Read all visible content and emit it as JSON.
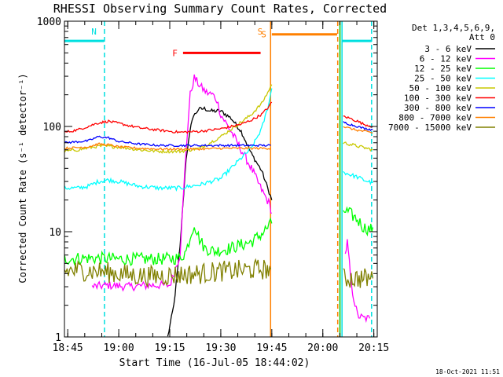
{
  "chart_data": {
    "type": "line",
    "title": "RHESSI Observing Summary Count Rates, Corrected",
    "xlabel": "Start Time (16-Jul-05 18:44:02)",
    "ylabel": "Corrected Count Rate (s⁻¹ detector⁻¹)",
    "y_scale": "log",
    "ylim": [
      1,
      1000
    ],
    "y_ticks": [
      {
        "value": 1,
        "label": "1"
      },
      {
        "value": 10,
        "label": "10"
      },
      {
        "value": 100,
        "label": "100"
      },
      {
        "value": 1000,
        "label": "1000"
      }
    ],
    "xlim": [
      18.7339,
      20.2667
    ],
    "x_ticks": [
      {
        "value": 18.75,
        "label": "18:45"
      },
      {
        "value": 19.0,
        "label": "19:00"
      },
      {
        "value": 19.25,
        "label": "19:15"
      },
      {
        "value": 19.5,
        "label": "19:30"
      },
      {
        "value": 19.75,
        "label": "19:45"
      },
      {
        "value": 20.0,
        "label": "20:00"
      },
      {
        "value": 20.25,
        "label": "20:15"
      }
    ],
    "legend_header": [
      "Det 1,3,4,5,6,9,",
      "Att 0"
    ],
    "legend_position": "right",
    "timestamp": "18-Oct-2021 11:51",
    "markers": [
      {
        "label": "N",
        "color": "#00e0e0",
        "style": "dashed",
        "x": 18.93
      },
      {
        "label": "S",
        "color": "#ff8000",
        "style": "solid",
        "x": 19.744
      },
      {
        "label": "",
        "color": "#ff8000",
        "style": "dashed",
        "x": 20.073
      },
      {
        "label": "",
        "color": "#00c000",
        "style": "solid",
        "x": 20.084
      },
      {
        "label": "",
        "color": "#00e0e0",
        "style": "solid",
        "x": 20.094
      },
      {
        "label": "",
        "color": "#00e0e0",
        "style": "dashed",
        "x": 20.239
      }
    ],
    "bars": [
      {
        "label": "",
        "color": "#00e0e0",
        "y": 650,
        "segments": [
          [
            18.735,
            18.928
          ],
          [
            20.095,
            20.239
          ]
        ]
      },
      {
        "label": "F",
        "color": "#ff0000",
        "y": 500,
        "segments": [
          [
            19.315,
            19.695
          ]
        ]
      },
      {
        "label": "S",
        "color": "#ff8000",
        "y": 750,
        "segments": [
          [
            19.75,
            20.07
          ]
        ]
      }
    ],
    "series": [
      {
        "name": "3 - 6 keV",
        "color": "#000000",
        "noise": 0.02,
        "segments": [
          [
            [
              19.24,
              1
            ],
            [
              19.27,
              2
            ],
            [
              19.3,
              7
            ],
            [
              19.33,
              50
            ],
            [
              19.36,
              120
            ],
            [
              19.39,
              145
            ],
            [
              19.42,
              148
            ],
            [
              19.45,
              140
            ],
            [
              19.5,
              140
            ],
            [
              19.55,
              120
            ],
            [
              19.6,
              90
            ],
            [
              19.65,
              55
            ],
            [
              19.7,
              38
            ],
            [
              19.73,
              26
            ],
            [
              19.75,
              20
            ]
          ]
        ]
      },
      {
        "name": "6 - 12 keV",
        "color": "#ff00ff",
        "noise": 0.04,
        "segments": [
          [
            [
              18.87,
              3.0
            ],
            [
              18.95,
              3.1
            ],
            [
              19.05,
              3.0
            ],
            [
              19.15,
              3.1
            ],
            [
              19.25,
              3.1
            ],
            [
              19.3,
              6
            ],
            [
              19.33,
              60
            ],
            [
              19.35,
              200
            ],
            [
              19.37,
              290
            ],
            [
              19.4,
              240
            ],
            [
              19.43,
              210
            ],
            [
              19.46,
              200
            ],
            [
              19.48,
              180
            ],
            [
              19.5,
              130
            ],
            [
              19.55,
              90
            ],
            [
              19.6,
              60
            ],
            [
              19.65,
              40
            ],
            [
              19.7,
              25
            ],
            [
              19.74,
              18
            ],
            [
              19.75,
              15
            ]
          ],
          [
            [
              20.11,
              6
            ],
            [
              20.12,
              8
            ],
            [
              20.13,
              5
            ],
            [
              20.14,
              3
            ],
            [
              20.17,
              1.6
            ],
            [
              20.2,
              1.5
            ],
            [
              20.23,
              1.5
            ]
          ]
        ]
      },
      {
        "name": "12 - 25 keV",
        "color": "#00ff00",
        "noise": 0.06,
        "segments": [
          [
            [
              18.735,
              5.5
            ],
            [
              18.8,
              5.6
            ],
            [
              18.9,
              5.6
            ],
            [
              19.0,
              5.5
            ],
            [
              19.1,
              5.5
            ],
            [
              19.2,
              5.5
            ],
            [
              19.3,
              5.6
            ],
            [
              19.33,
              6.5
            ],
            [
              19.35,
              9
            ],
            [
              19.37,
              12
            ],
            [
              19.39,
              9
            ],
            [
              19.42,
              7
            ],
            [
              19.47,
              6.5
            ],
            [
              19.55,
              7
            ],
            [
              19.6,
              7.5
            ],
            [
              19.65,
              8
            ],
            [
              19.7,
              9.5
            ],
            [
              19.73,
              11
            ],
            [
              19.75,
              12
            ]
          ],
          [
            [
              20.1,
              16
            ],
            [
              20.13,
              15
            ],
            [
              20.17,
              13
            ],
            [
              20.2,
              11
            ],
            [
              20.23,
              10.5
            ],
            [
              20.245,
              11
            ]
          ]
        ]
      },
      {
        "name": "25 - 50 keV",
        "color": "#00ffff",
        "noise": 0.02,
        "segments": [
          [
            [
              18.735,
              26
            ],
            [
              18.8,
              26
            ],
            [
              18.85,
              27
            ],
            [
              18.9,
              30
            ],
            [
              18.95,
              31
            ],
            [
              19.0,
              30
            ],
            [
              19.1,
              27
            ],
            [
              19.2,
              26
            ],
            [
              19.3,
              26
            ],
            [
              19.4,
              28
            ],
            [
              19.5,
              32
            ],
            [
              19.55,
              40
            ],
            [
              19.6,
              50
            ],
            [
              19.65,
              62
            ],
            [
              19.7,
              95
            ],
            [
              19.73,
              150
            ],
            [
              19.75,
              230
            ]
          ],
          [
            [
              20.1,
              37
            ],
            [
              20.13,
              35
            ],
            [
              20.17,
              33
            ],
            [
              20.2,
              31
            ],
            [
              20.245,
              29
            ]
          ]
        ]
      },
      {
        "name": "50 - 100 keV",
        "color": "#c8c800",
        "noise": 0.015,
        "segments": [
          [
            [
              18.735,
              58
            ],
            [
              18.8,
              60
            ],
            [
              18.9,
              65
            ],
            [
              19.0,
              64
            ],
            [
              19.1,
              60
            ],
            [
              19.2,
              58
            ],
            [
              19.3,
              58
            ],
            [
              19.4,
              62
            ],
            [
              19.5,
              80
            ],
            [
              19.6,
              110
            ],
            [
              19.65,
              130
            ],
            [
              19.7,
              165
            ],
            [
              19.73,
              210
            ],
            [
              19.75,
              250
            ]
          ],
          [
            [
              20.1,
              70
            ],
            [
              20.13,
              68
            ],
            [
              20.17,
              65
            ],
            [
              20.2,
              63
            ],
            [
              20.245,
              60
            ]
          ]
        ]
      },
      {
        "name": "100 - 300 keV",
        "color": "#ff0000",
        "noise": 0.012,
        "segments": [
          [
            [
              18.735,
              88
            ],
            [
              18.8,
              93
            ],
            [
              18.9,
              108
            ],
            [
              18.95,
              112
            ],
            [
              19.0,
              107
            ],
            [
              19.1,
              97
            ],
            [
              19.2,
              92
            ],
            [
              19.3,
              88
            ],
            [
              19.4,
              90
            ],
            [
              19.5,
              95
            ],
            [
              19.6,
              105
            ],
            [
              19.65,
              115
            ],
            [
              19.7,
              130
            ],
            [
              19.73,
              150
            ],
            [
              19.75,
              170
            ]
          ],
          [
            [
              20.1,
              125
            ],
            [
              20.13,
              120
            ],
            [
              20.17,
              112
            ],
            [
              20.2,
              105
            ],
            [
              20.245,
              100
            ]
          ]
        ]
      },
      {
        "name": "300 - 800 keV",
        "color": "#0000ff",
        "noise": 0.01,
        "segments": [
          [
            [
              18.735,
              70
            ],
            [
              18.85,
              73
            ],
            [
              18.9,
              80
            ],
            [
              18.95,
              78
            ],
            [
              19.0,
              72
            ],
            [
              19.1,
              68
            ],
            [
              19.2,
              66
            ],
            [
              19.3,
              66
            ],
            [
              19.4,
              66
            ],
            [
              19.5,
              66
            ],
            [
              19.6,
              66
            ],
            [
              19.7,
              66
            ],
            [
              19.745,
              66
            ]
          ],
          [
            [
              20.1,
              110
            ],
            [
              20.13,
              105
            ],
            [
              20.17,
              100
            ],
            [
              20.2,
              96
            ],
            [
              20.245,
              93
            ]
          ]
        ]
      },
      {
        "name": "800 - 7000 keV",
        "color": "#ff8000",
        "noise": 0.01,
        "segments": [
          [
            [
              18.735,
              62
            ],
            [
              18.85,
              64
            ],
            [
              18.9,
              68
            ],
            [
              18.95,
              67
            ],
            [
              19.0,
              64
            ],
            [
              19.1,
              62
            ],
            [
              19.2,
              61
            ],
            [
              19.3,
              61
            ],
            [
              19.4,
              61
            ],
            [
              19.5,
              62
            ],
            [
              19.6,
              62
            ],
            [
              19.7,
              62
            ],
            [
              19.745,
              62
            ]
          ],
          [
            [
              20.1,
              100
            ],
            [
              20.13,
              96
            ],
            [
              20.17,
              92
            ],
            [
              20.2,
              90
            ],
            [
              20.245,
              87
            ]
          ]
        ]
      },
      {
        "name": "7000 - 15000 keV",
        "color": "#808000",
        "noise": 0.1,
        "segments": [
          [
            [
              18.735,
              4.2
            ],
            [
              18.8,
              4.3
            ],
            [
              18.9,
              4.2
            ],
            [
              19.0,
              4.0
            ],
            [
              19.1,
              3.8
            ],
            [
              19.2,
              3.8
            ],
            [
              19.3,
              3.9
            ],
            [
              19.4,
              4.0
            ],
            [
              19.5,
              4.2
            ],
            [
              19.6,
              4.3
            ],
            [
              19.7,
              4.4
            ],
            [
              19.745,
              4.4
            ]
          ],
          [
            [
              20.1,
              3.6
            ],
            [
              20.15,
              3.6
            ],
            [
              20.2,
              3.6
            ],
            [
              20.245,
              3.6
            ]
          ]
        ]
      }
    ]
  }
}
